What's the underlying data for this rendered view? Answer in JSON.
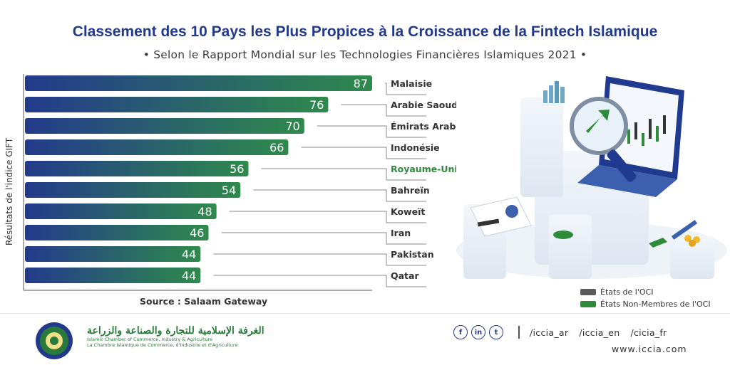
{
  "header": {
    "title": "Classement des 10 Pays les Plus Propices à la Croissance de la Fintech Islamique",
    "subtitle": "• Selon le Rapport Mondial sur les Technologies Financières Islamiques 2021 •"
  },
  "chart_data": {
    "type": "bar",
    "orientation": "horizontal",
    "title": "Classement des 10 Pays les Plus Propices à la Croissance de la Fintech Islamique",
    "ylabel": "Résultats de l'indice GIFT",
    "xlabel": "",
    "xlim": [
      0,
      87
    ],
    "categories": [
      "Malaisie",
      "Arabie Saoudite",
      "Émirats Arabes Unis",
      "Indonésie",
      "Royaume-Uni",
      "Bahreïn",
      "Koweït",
      "Iran",
      "Pakistan",
      "Qatar"
    ],
    "values": [
      87,
      76,
      70,
      66,
      56,
      54,
      48,
      46,
      44,
      44
    ],
    "groups": [
      "OCI",
      "OCI",
      "OCI",
      "OCI",
      "Non-OCI",
      "OCI",
      "OCI",
      "OCI",
      "OCI",
      "OCI"
    ],
    "source": "Source : Salaam Gateway"
  },
  "legend": {
    "oci_label": "États de l'OCI",
    "non_oci_label": "États Non-Membres de l'OCI",
    "oci_color": "#5a5a5a",
    "non_oci_color": "#2e8b3a"
  },
  "colors": {
    "bar_start": "#233a8c",
    "bar_end": "#2f8a4c",
    "title": "#233a8c",
    "label_oci": "#333333",
    "label_non_oci": "#2e8b3a"
  },
  "footer": {
    "org_arabic": "الغرفة الإسلامية للتجارة والصناعة والزراعة",
    "org_english": "Islamic Chamber of Commerce, Industry & Agriculture",
    "org_french": "La Chambre Islamique de Commerce, d'Industrie et d'Agriculture",
    "social_facebook": "f",
    "social_linkedin": "in",
    "social_twitter": "t",
    "handle_ar": "/iccia_ar",
    "handle_en": "/iccia_en",
    "handle_fr": "/cicia_fr",
    "website": "www.iccia.com"
  }
}
